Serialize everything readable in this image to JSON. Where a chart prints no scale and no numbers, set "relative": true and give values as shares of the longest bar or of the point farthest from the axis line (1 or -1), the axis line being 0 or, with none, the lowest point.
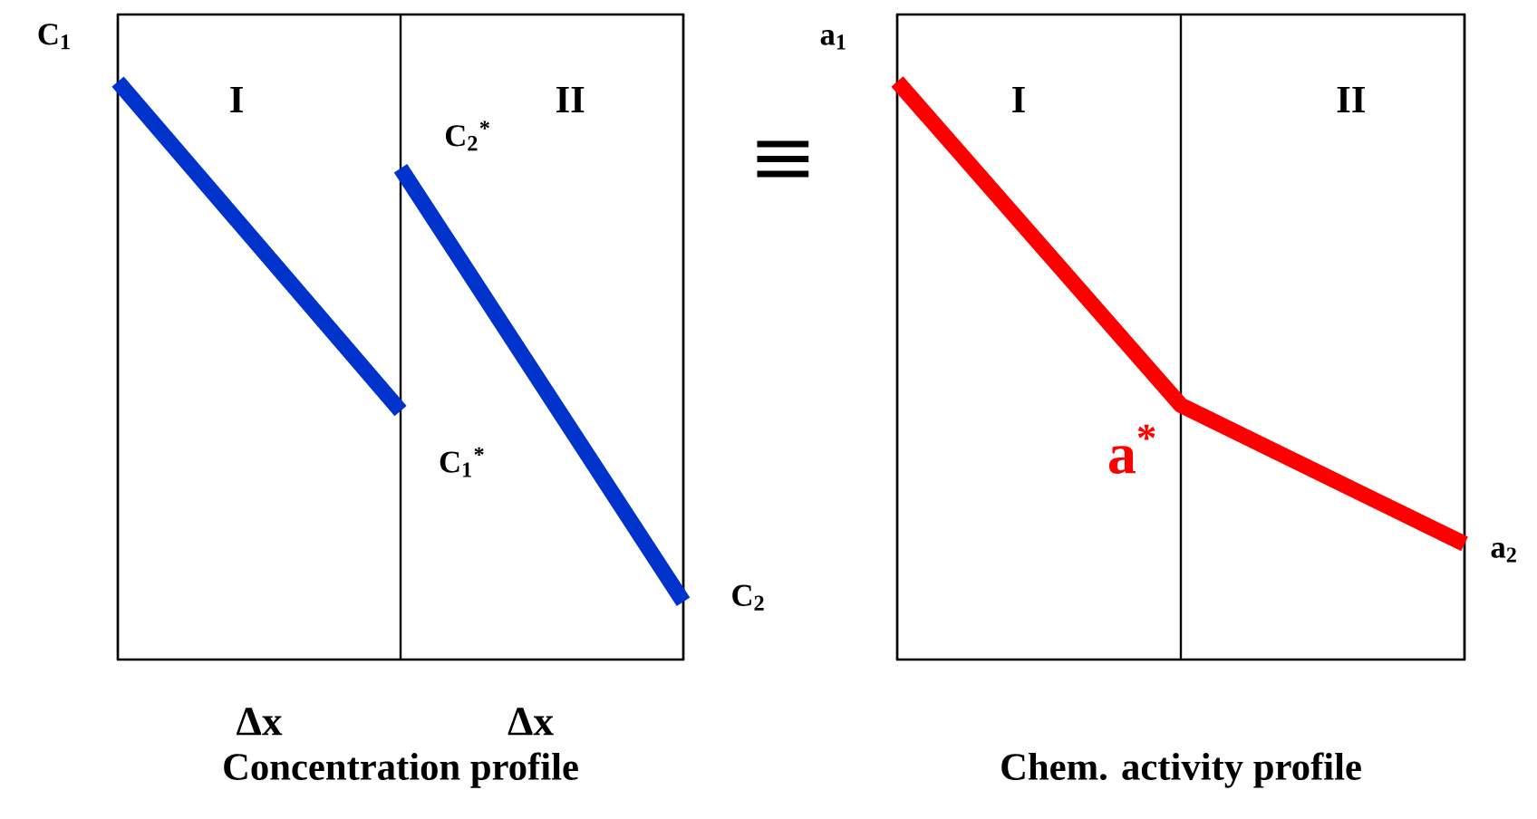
{
  "chart_data": [
    {
      "type": "line",
      "title": "Concentration profile",
      "categories": [
        null,
        null,
        null
      ],
      "relative": true,
      "grid": "x",
      "series": [
        {
          "color": "#0033cc",
          "values": [
            1,
            0.43,
            null
          ]
        },
        {
          "color": "#0033cc",
          "values": [
            null,
            0.85,
            0.1
          ]
        }
      ],
      "annotations": [
        "I",
        "II",
        "Δx",
        "Δx",
        "≡",
        "C$_{1}$",
        "C$_{2}$$^{*}$",
        "C$_{1}$$^{*}$",
        "C$_{2}$"
      ]
    },
    {
      "type": "line",
      "title": "Chem. activity profile",
      "categories": [
        null,
        null,
        null
      ],
      "relative": true,
      "grid": "x",
      "series": [
        {
          "color": "#ff0000",
          "values": [
            1,
            0.44,
            0.2
          ]
        }
      ],
      "annotations": [
        "I",
        "II",
        "a$_{1}$",
        "a$^{*}$",
        "a$_{2}$"
      ]
    }
  ]
}
